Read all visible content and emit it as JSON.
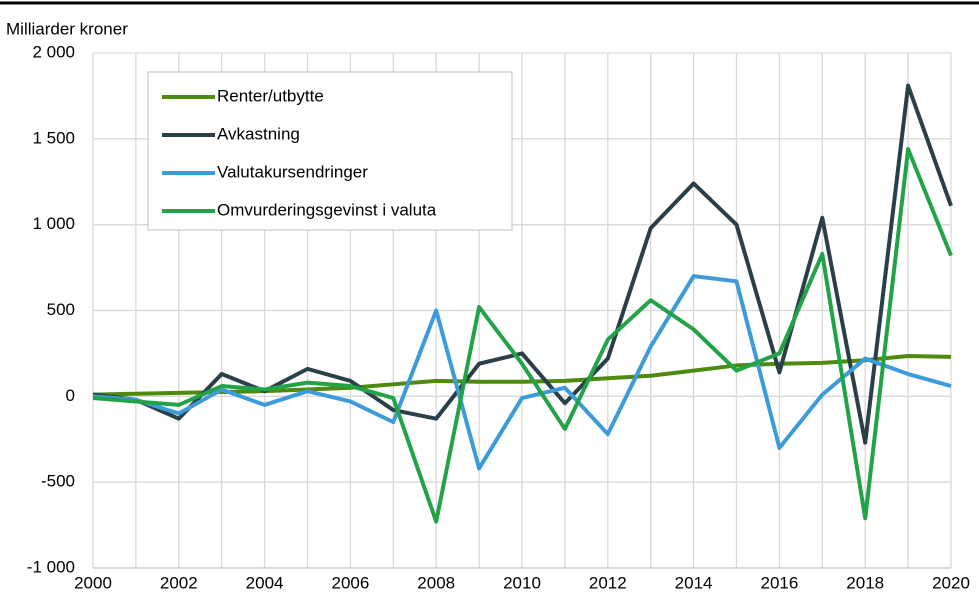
{
  "chart_data": {
    "type": "line",
    "ylabel": "Milliarder kroner",
    "x": [
      2000,
      2001,
      2002,
      2003,
      2004,
      2005,
      2006,
      2007,
      2008,
      2009,
      2010,
      2011,
      2012,
      2013,
      2014,
      2015,
      2016,
      2017,
      2018,
      2019,
      2020
    ],
    "series": [
      {
        "name": "Renter/utbytte",
        "color": "#4e8a0e",
        "values": [
          10,
          15,
          20,
          25,
          30,
          40,
          50,
          70,
          90,
          85,
          85,
          90,
          105,
          120,
          150,
          180,
          190,
          195,
          210,
          235,
          230
        ]
      },
      {
        "name": "Avkastning",
        "color": "#2b3f49",
        "values": [
          10,
          -20,
          -130,
          130,
          30,
          160,
          90,
          -80,
          -130,
          190,
          250,
          -40,
          220,
          980,
          1240,
          1000,
          140,
          1040,
          -270,
          1810,
          1110
        ]
      },
      {
        "name": "Valutakursendringer",
        "color": "#3d9bd9",
        "values": [
          0,
          -20,
          -100,
          40,
          -50,
          30,
          -30,
          -150,
          500,
          -420,
          -10,
          50,
          -220,
          290,
          700,
          670,
          -300,
          10,
          220,
          130,
          60
        ]
      },
      {
        "name": "Omvurderingsgevinst i valuta",
        "color": "#23a348",
        "values": [
          -10,
          -30,
          -50,
          60,
          40,
          80,
          60,
          -10,
          -730,
          520,
          190,
          -190,
          330,
          560,
          390,
          150,
          250,
          830,
          -710,
          1440,
          820
        ]
      }
    ],
    "xlim": [
      2000,
      2020
    ],
    "xticks": [
      2000,
      2002,
      2004,
      2006,
      2008,
      2010,
      2012,
      2014,
      2016,
      2018,
      2020
    ],
    "ylim": [
      -1000,
      2000
    ],
    "yticks": [
      {
        "value": -1000,
        "label": "-1 000"
      },
      -500,
      0,
      500,
      {
        "value": 1000,
        "label": "1 000"
      },
      {
        "value": 1500,
        "label": "1 500"
      },
      {
        "value": 2000,
        "label": "2 000"
      }
    ],
    "grid": true,
    "legend": "upper left"
  }
}
